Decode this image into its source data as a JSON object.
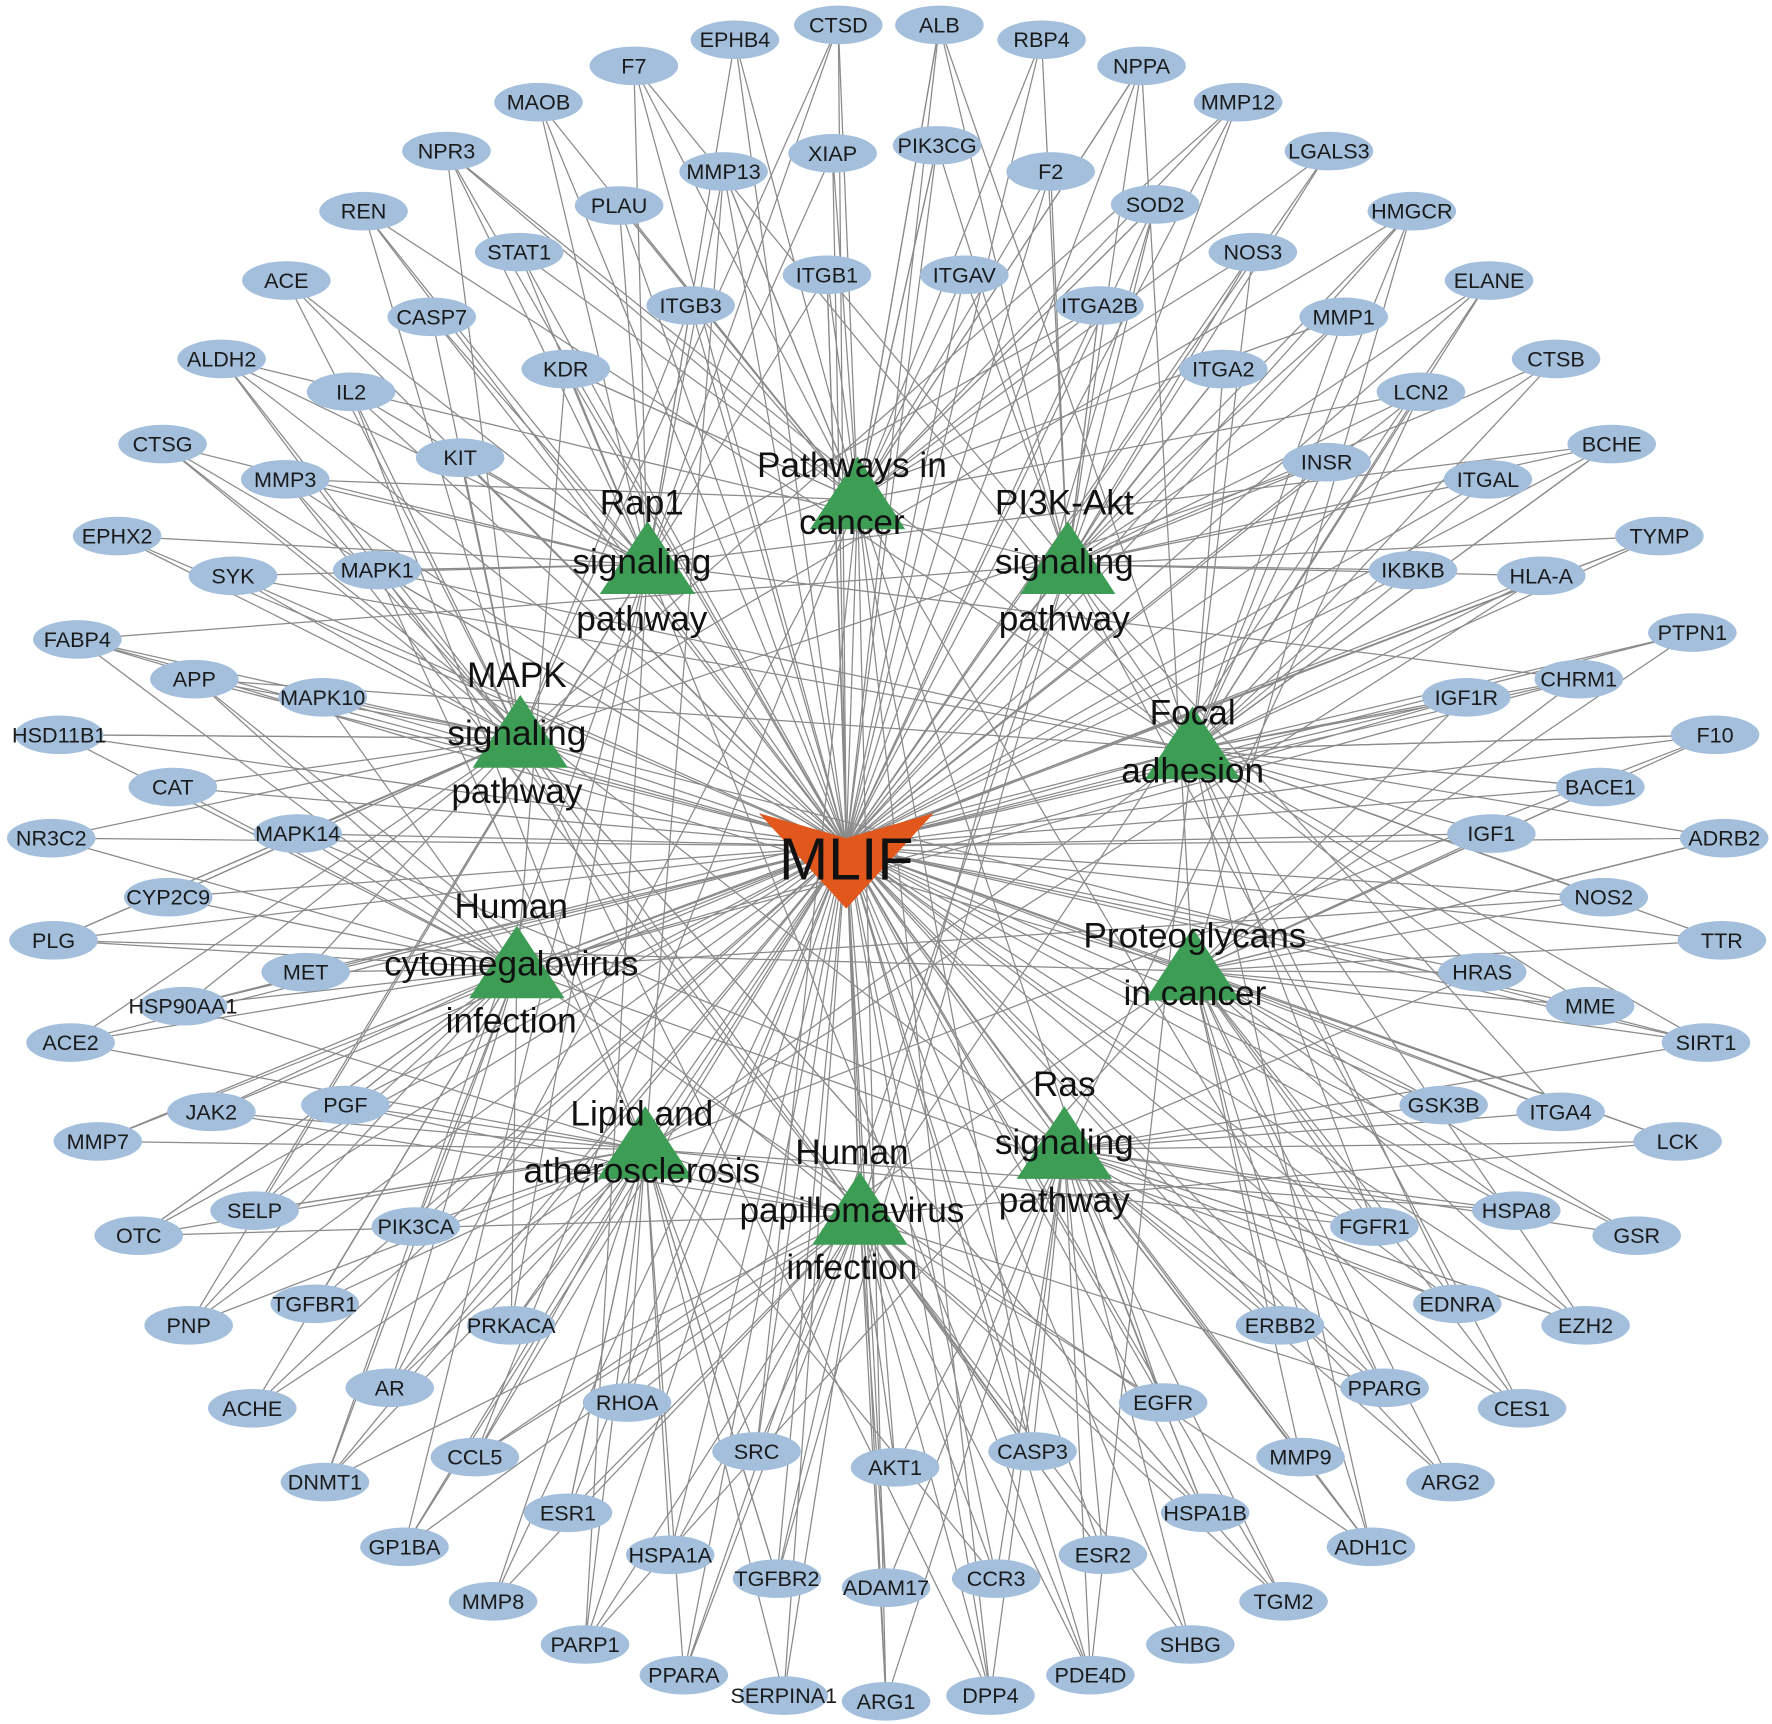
{
  "colors": {
    "target": "#a3bfdc",
    "pathway": "#3e9d55",
    "drug": "#e2581c",
    "edge": "#8a8a8a"
  },
  "drug": {
    "label": "MLIF",
    "shape": "v-arrow"
  },
  "pathways": [
    {
      "lines": [
        "Pathways in",
        "cancer"
      ]
    },
    {
      "lines": [
        "Rap1",
        "signaling",
        "pathway"
      ]
    },
    {
      "lines": [
        "PI3K-Akt",
        "signaling",
        "pathway"
      ]
    },
    {
      "lines": [
        "MAPK",
        "signaling",
        "pathway"
      ]
    },
    {
      "lines": [
        "Focal",
        "adhesion"
      ]
    },
    {
      "lines": [
        "Human",
        "cytomegalovirus",
        "infection"
      ]
    },
    {
      "lines": [
        "Proteoglycans",
        "in cancer"
      ]
    },
    {
      "lines": [
        "Lipid and",
        "atherosclerosis"
      ]
    },
    {
      "lines": [
        "Ras",
        "signaling",
        "pathway"
      ]
    },
    {
      "lines": [
        "Human",
        "papillomavirus",
        "infection"
      ]
    }
  ],
  "targets": [
    "EPHB4",
    "CTSD",
    "ALB",
    "RBP4",
    "F7",
    "NPPA",
    "MAOB",
    "MMP12",
    "NPR3",
    "LGALS3",
    "REN",
    "HMGCR",
    "ACE",
    "ELANE",
    "ALDH2",
    "CTSB",
    "CTSG",
    "BCHE",
    "EPHX2",
    "TYMP",
    "FABP4",
    "PTPN1",
    "HSD11B1",
    "F10",
    "NR3C2",
    "ADRB2",
    "PLG",
    "TTR",
    "ACE2",
    "SIRT1",
    "MMP7",
    "LCK",
    "OTC",
    "GSR",
    "PNP",
    "EZH2",
    "ACHE",
    "CES1",
    "DNMT1",
    "ARG2",
    "GP1BA",
    "ADH1C",
    "MMP8",
    "TGM2",
    "PARP1",
    "SHBG",
    "PPARA",
    "PDE4D",
    "SERPINA1",
    "ARG1",
    "DPP4",
    "XIAP",
    "PIK3CG",
    "MMP13",
    "F2",
    "PLAU",
    "SOD2",
    "STAT1",
    "NOS3",
    "ITGB1",
    "ITGAV",
    "ITGB3",
    "ITGA2B",
    "CASP7",
    "MMP1",
    "KDR",
    "ITGA2",
    "IL2",
    "LCN2",
    "KIT",
    "INSR",
    "MMP3",
    "ITGAL",
    "SYK",
    "MAPK1",
    "IKBKB",
    "HLA-A",
    "APP",
    "MAPK10",
    "IGF1R",
    "CHRM1",
    "CAT",
    "BACE1",
    "MAPK14",
    "IGF1",
    "CYP2C9",
    "NOS2",
    "MET",
    "HRAS",
    "HSP90AA1",
    "MME",
    "JAK2",
    "PGF",
    "GSK3B",
    "ITGA4",
    "SELP",
    "PIK3CA",
    "HSPA8",
    "FGFR1",
    "TGFBR1",
    "PRKACA",
    "EDNRA",
    "ERBB2",
    "AR",
    "PPARG",
    "RHOA",
    "EGFR",
    "CCL5",
    "MMP9",
    "SRC",
    "CASP3",
    "AKT1",
    "ESR1",
    "HSPA1B",
    "HSPA1A",
    "ESR2",
    "TGFBR2",
    "ADAM17",
    "CCR3"
  ]
}
